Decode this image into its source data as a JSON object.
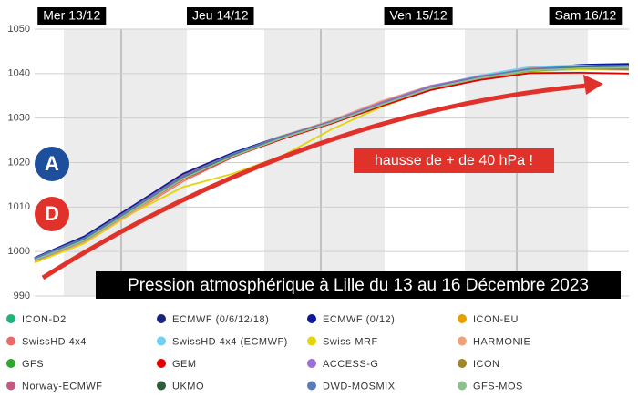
{
  "chart_data": {
    "type": "line",
    "title": "Pression atmosphérique à Lille du 13 au 16 Décembre 2023",
    "annotation": "hausse de + de 40 hPa !",
    "badges": [
      "A",
      "D"
    ],
    "x": [
      0,
      8,
      16,
      24,
      32,
      40,
      48,
      56,
      64,
      72,
      80,
      88,
      96
    ],
    "xlim": [
      0,
      96
    ],
    "xticks": [
      {
        "value": 6,
        "label": "Mer 13/12"
      },
      {
        "value": 30,
        "label": "Jeu 14/12"
      },
      {
        "value": 62,
        "label": "Ven 15/12"
      },
      {
        "value": 89,
        "label": "Sam 16/12"
      }
    ],
    "ylim": [
      990,
      1050
    ],
    "yticks": [
      990,
      1000,
      1010,
      1020,
      1030,
      1040,
      1050
    ],
    "grid": true,
    "series": [
      {
        "name": "ICON-D2",
        "color": "#1db37a",
        "values": [
          998.3,
          1002.8,
          1009.8,
          1016.8,
          1021.8,
          1025.9,
          1029.2,
          1033.3,
          1037,
          1039.3,
          1041,
          1041.4,
          1041
        ]
      },
      {
        "name": "ECMWF (0/6/12/18)",
        "color": "#1a237e",
        "values": [
          998.5,
          1003.2,
          1010.2,
          1017.3,
          1022,
          1025.8,
          1028.8,
          1032.8,
          1036.6,
          1039.2,
          1041,
          1041.8,
          1041.9
        ]
      },
      {
        "name": "ECMWF (0/12)",
        "color": "#0d1a9e",
        "values": [
          998.6,
          1003.4,
          1010.4,
          1017.5,
          1022.2,
          1026,
          1028.9,
          1032.6,
          1036.4,
          1039,
          1040.9,
          1042,
          1042.2
        ]
      },
      {
        "name": "ICON-EU",
        "color": "#e6a100",
        "values": [
          998.2,
          1002.6,
          1009.6,
          1016.6,
          1021.6,
          1025.6,
          1029.1,
          1033.1,
          1036.9,
          1039.1,
          1040.9,
          1041.3,
          1041
        ]
      },
      {
        "name": "SwissHD 4x4",
        "color": "#e86a6a",
        "values": [
          997.8,
          1002,
          1008.9,
          1015.8,
          1021.2,
          1025.8,
          1029.4,
          1033.6,
          1037.2,
          1039.5,
          1041.2,
          1041.5,
          1041.1
        ]
      },
      {
        "name": "SwissHD 4x4 (ECMWF)",
        "color": "#6fd0f0",
        "values": [
          998,
          1002.3,
          1009.3,
          1016.3,
          1021.5,
          1025.7,
          1029.1,
          1033.2,
          1037,
          1039.6,
          1041.5,
          1041.9,
          1041.5
        ]
      },
      {
        "name": "Swiss-MRF",
        "color": "#e4d40a",
        "values": [
          997.5,
          1001.8,
          1008.8,
          1014.5,
          1017.5,
          1021.5,
          1027.5,
          1032.5,
          1036.5,
          1039,
          1040.5,
          1041,
          1040.8
        ]
      },
      {
        "name": "HARMONIE",
        "color": "#f2a07a",
        "values": [
          998,
          1002.2,
          1009,
          1016,
          1021.8,
          1026,
          1029.5,
          1033.8,
          1037.3,
          1039.3,
          1040.9,
          1041.3,
          1041
        ]
      },
      {
        "name": "GFS",
        "color": "#2ea52e",
        "values": [
          998.1,
          1002.4,
          1009.4,
          1016.4,
          1021.6,
          1025.6,
          1029,
          1033,
          1036.7,
          1039,
          1040.6,
          1041.2,
          1041.3
        ]
      },
      {
        "name": "GEM",
        "color": "#e00000",
        "values": [
          998.2,
          1002.5,
          1009.4,
          1016.3,
          1021.3,
          1025.3,
          1028.8,
          1032.7,
          1036.3,
          1038.6,
          1040.1,
          1040.2,
          1040
        ]
      },
      {
        "name": "ACCESS-G",
        "color": "#9a6fd6",
        "values": [
          998,
          1002.4,
          1009.5,
          1016.5,
          1021.7,
          1025.9,
          1029.3,
          1033.5,
          1037.2,
          1039.4,
          1041,
          1041.2,
          1040.9
        ]
      },
      {
        "name": "ICON",
        "color": "#a0862a",
        "values": [
          998.2,
          1002.6,
          1009.6,
          1016.6,
          1021.6,
          1025.6,
          1029,
          1033,
          1036.8,
          1039,
          1040.7,
          1041.2,
          1041
        ]
      },
      {
        "name": "Norway-ECMWF",
        "color": "#c05a80",
        "values": [
          998.4,
          1003,
          1010,
          1017.1,
          1021.9,
          1025.8,
          1029,
          1033.2,
          1036.9,
          1039.3,
          1041,
          1041.6,
          1041.4
        ]
      },
      {
        "name": "UKMO",
        "color": "#2f5e3f",
        "values": [
          998.3,
          1002.8,
          1009.7,
          1016.7,
          1021.7,
          1025.7,
          1029,
          1033,
          1036.8,
          1039.1,
          1040.8,
          1041.4,
          1041.6
        ]
      },
      {
        "name": "DWD-MOSMIX",
        "color": "#5a7ab8",
        "values": [
          998.5,
          1003,
          1009.9,
          1016.9,
          1021.9,
          1025.9,
          1029.2,
          1033.1,
          1036.9,
          1039.2,
          1041,
          1041.7,
          1041.8
        ]
      },
      {
        "name": "GFS-MOS",
        "color": "#8fc08f",
        "values": [
          998.1,
          1002.5,
          1009.4,
          1016.4,
          1021.4,
          1025.5,
          1029,
          1033,
          1036.7,
          1039,
          1040.7,
          1041.2,
          1041.4
        ]
      }
    ]
  }
}
